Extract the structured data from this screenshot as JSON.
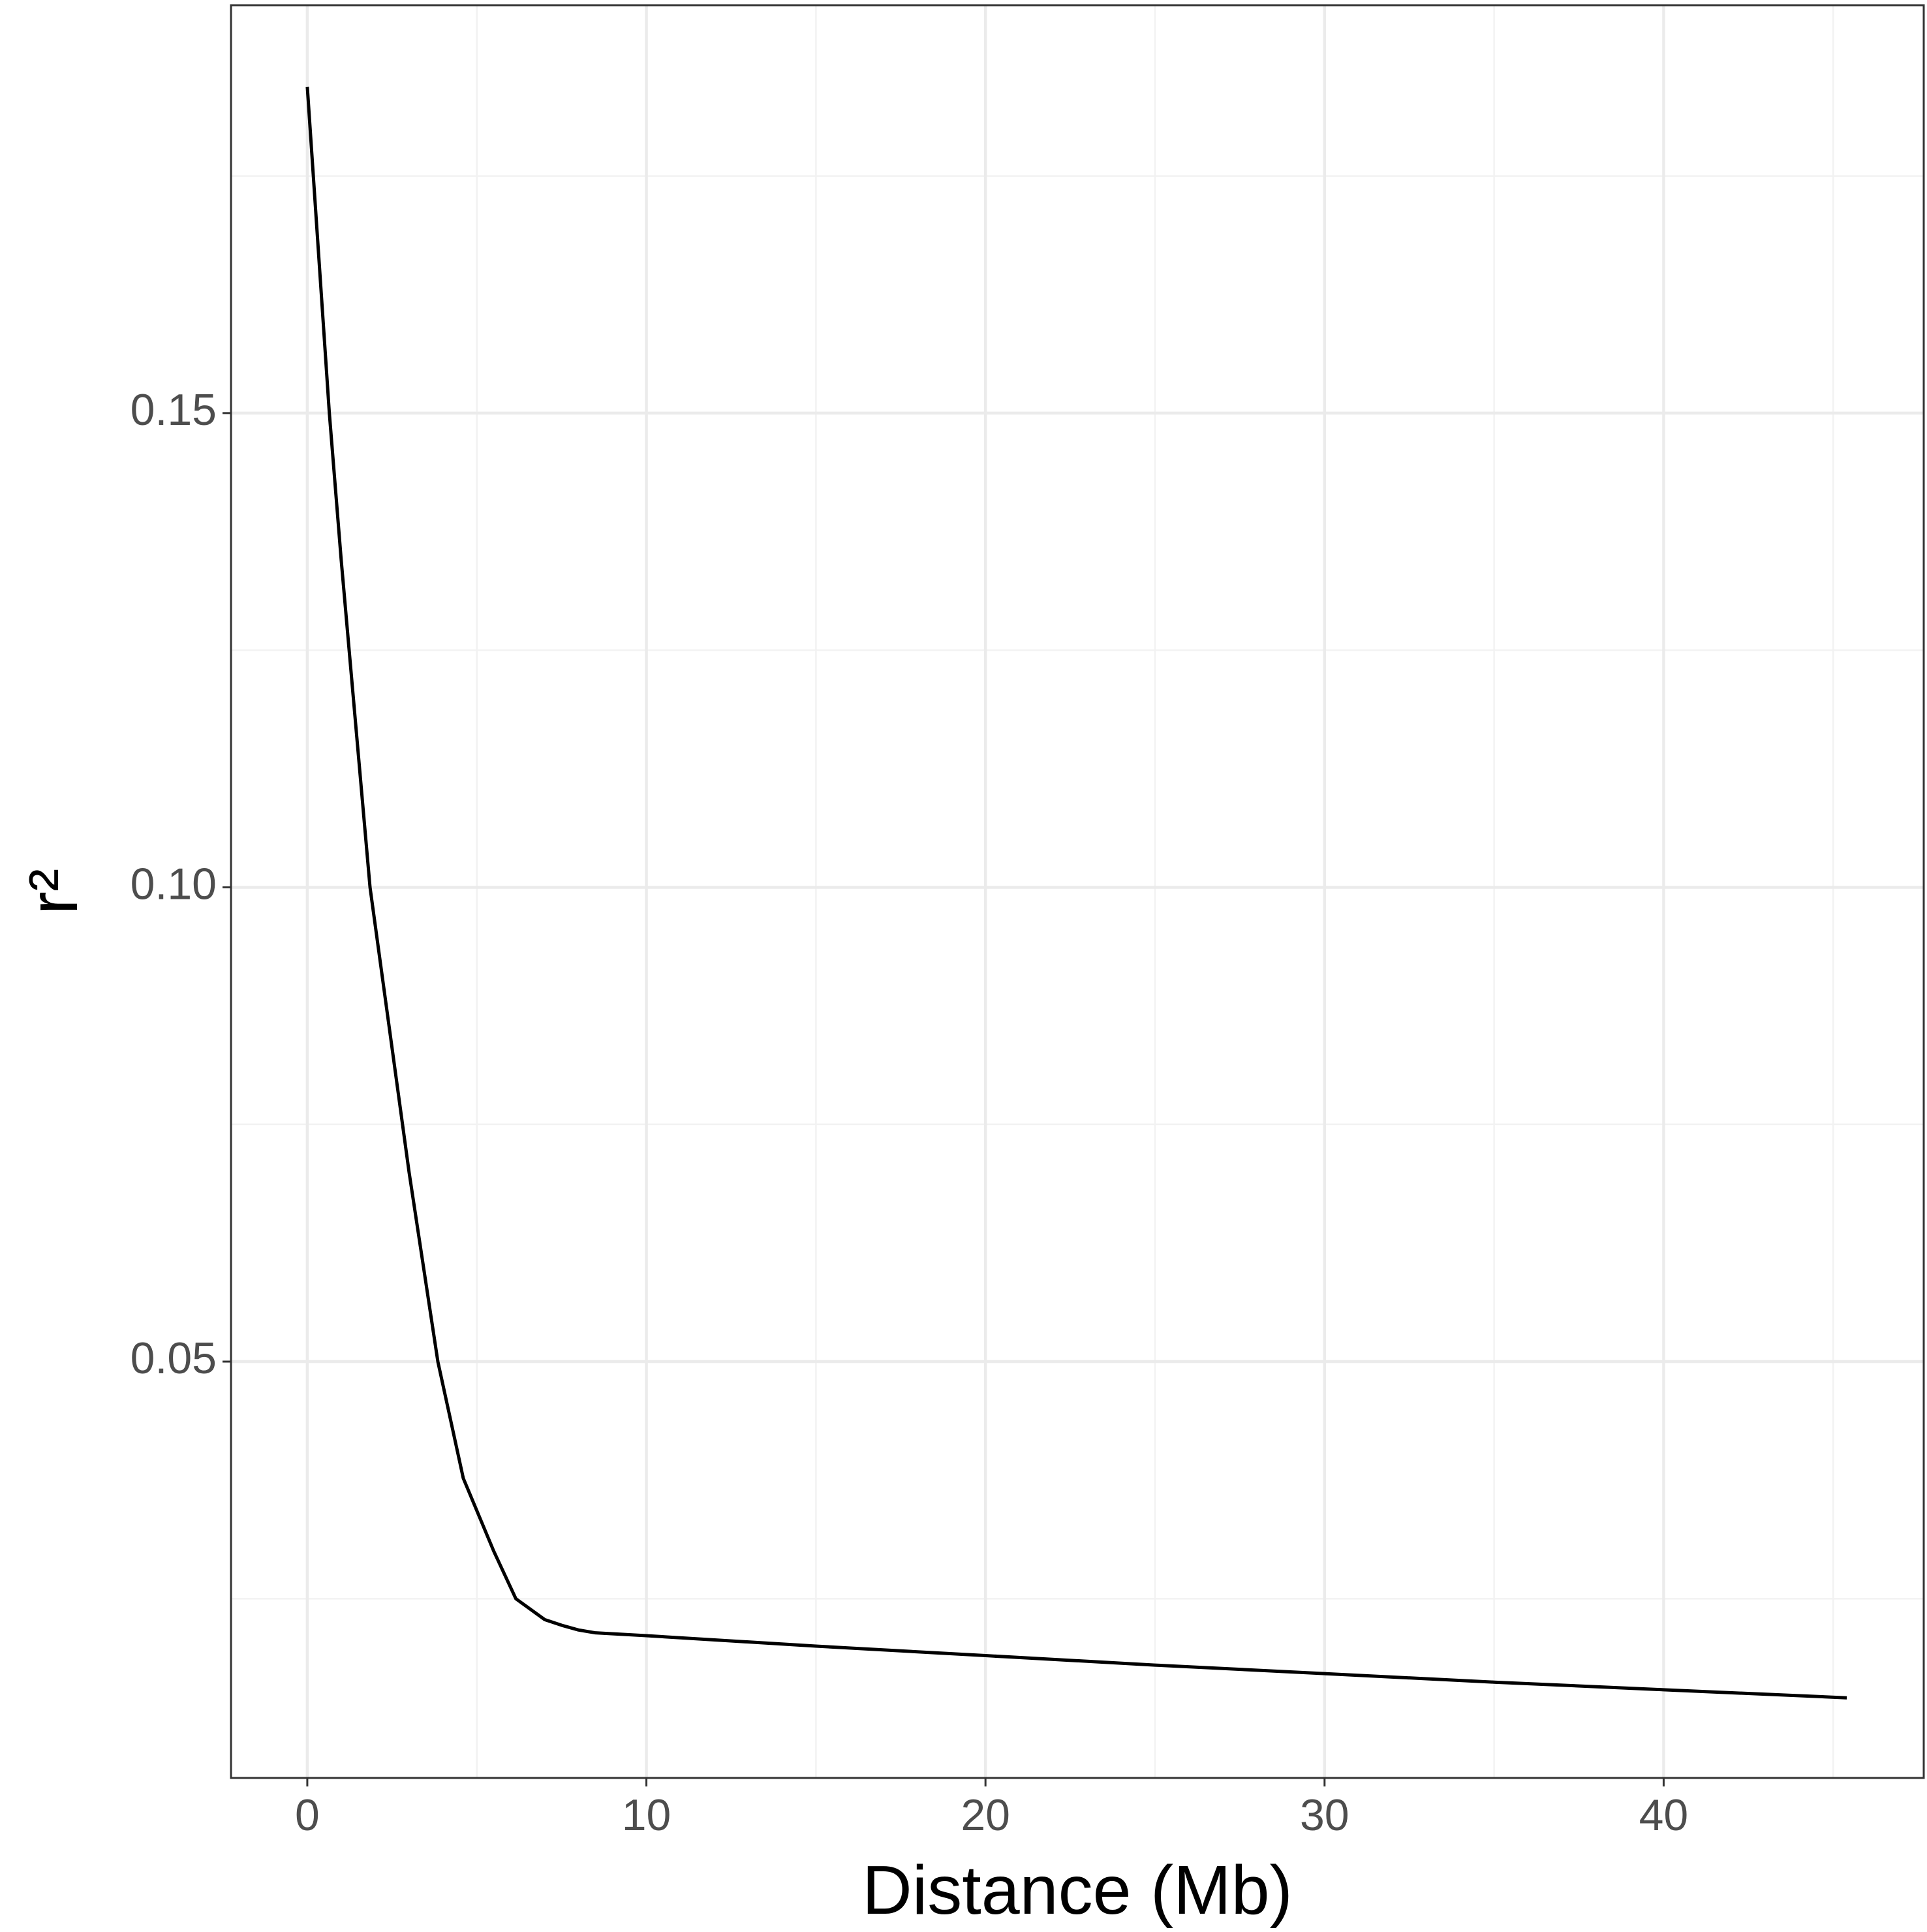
{
  "chart_data": {
    "type": "line",
    "x_label": "Distance (Mb)",
    "y_label": "r²",
    "x": [
      0,
      0.65,
      1,
      1.85,
      3,
      3.85,
      4.6,
      5.5,
      6.15,
      7,
      7.5,
      8,
      8.5,
      10,
      15,
      20,
      25,
      30,
      35,
      40,
      45.4
    ],
    "series": [
      {
        "color": "#000000",
        "values": [
          0.1844,
          0.15,
          0.1345,
          0.1,
          0.07,
          0.05,
          0.0377,
          0.03,
          0.025,
          0.0228,
          0.0222,
          0.0217,
          0.0214,
          0.0211,
          0.02,
          0.019,
          0.018,
          0.0171,
          0.0162,
          0.0154,
          0.01455
        ]
      }
    ],
    "xlim": [
      -2.25,
      47.67
    ],
    "ylim": [
      0.0061,
      0.193
    ],
    "xticks": [
      0,
      10,
      20,
      30,
      40
    ],
    "yticks": [
      0.05,
      {
        "value": 0.1,
        "label": "0.10"
      },
      0.15
    ],
    "grid": true
  }
}
